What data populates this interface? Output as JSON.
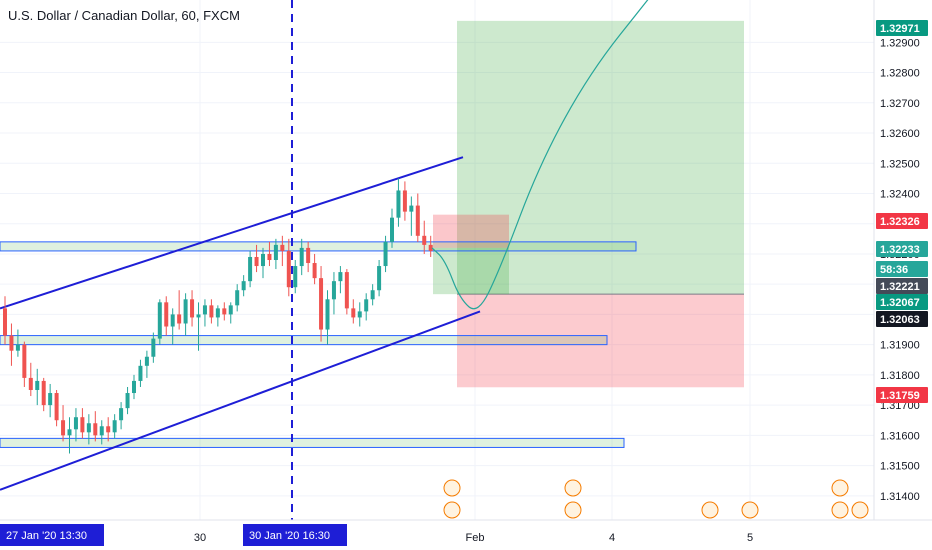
{
  "chart_data": {
    "type": "candlestick",
    "title": "U.S. Dollar / Canadian Dollar, 60, FXCM",
    "symbol": "USDCAD",
    "timeframe": "60",
    "source": "FXCM",
    "ylim": [
      1.3132,
      1.3304
    ],
    "price_ticks": [
      "1.31400",
      "1.31500",
      "1.31600",
      "1.31700",
      "1.31800",
      "1.31900",
      "1.32000",
      "1.32100",
      "1.32200",
      "1.32300",
      "1.32400",
      "1.32500",
      "1.32600",
      "1.32700",
      "1.32800",
      "1.32900"
    ],
    "x_ticks": [
      "30",
      "Feb",
      "4",
      "5"
    ],
    "time_labels": [
      "27 Jan '20   13:30",
      "30 Jan '20   16:30"
    ],
    "price_tags": [
      {
        "label": "1.32971",
        "color": "#089981"
      },
      {
        "label": "1.32326",
        "color": "#f23645"
      },
      {
        "label": "1.32233",
        "color": "#26a69a"
      },
      {
        "label": "58:36",
        "color": "#26a69a"
      },
      {
        "label": "1.32221",
        "color": "#444a58"
      },
      {
        "label": "1.32067",
        "color": "#089981"
      },
      {
        "label": "1.32063",
        "color": "#131722"
      },
      {
        "label": "1.31759",
        "color": "#f23645"
      }
    ],
    "position": {
      "type": "long",
      "entry": 1.32067,
      "target": 1.32971,
      "stop": 1.31759
    },
    "support_zones": [
      {
        "low": 1.3221,
        "high": 1.3224
      },
      {
        "low": 1.319,
        "high": 1.3193
      },
      {
        "low": 1.3156,
        "high": 1.3159
      }
    ],
    "channel": {
      "upper": [
        [
          0,
          1.3202
        ],
        [
          463,
          1.3252
        ]
      ],
      "lower": [
        [
          0,
          1.3142
        ],
        [
          480,
          1.3201
        ]
      ]
    },
    "projection": [
      1.3222,
      1.3218,
      1.3205,
      1.32,
      1.3215,
      1.325,
      1.328,
      1.3305
    ],
    "candles": [
      [
        1.3202,
        1.3206,
        1.319,
        1.3193
      ],
      [
        1.3193,
        1.3197,
        1.3183,
        1.3188
      ],
      [
        1.3188,
        1.3195,
        1.3186,
        1.319
      ],
      [
        1.319,
        1.3191,
        1.3176,
        1.3179
      ],
      [
        1.3179,
        1.3184,
        1.3173,
        1.3175
      ],
      [
        1.3175,
        1.3182,
        1.317,
        1.3178
      ],
      [
        1.3178,
        1.3179,
        1.3168,
        1.317
      ],
      [
        1.317,
        1.3177,
        1.3166,
        1.3174
      ],
      [
        1.3174,
        1.3175,
        1.3163,
        1.3165
      ],
      [
        1.3165,
        1.317,
        1.3158,
        1.316
      ],
      [
        1.316,
        1.3166,
        1.3154,
        1.3162
      ],
      [
        1.3162,
        1.3169,
        1.3158,
        1.3166
      ],
      [
        1.3166,
        1.3169,
        1.3159,
        1.3161
      ],
      [
        1.3161,
        1.3167,
        1.3157,
        1.3164
      ],
      [
        1.3164,
        1.3168,
        1.3158,
        1.316
      ],
      [
        1.316,
        1.3165,
        1.3157,
        1.3163
      ],
      [
        1.3163,
        1.3166,
        1.3158,
        1.3161
      ],
      [
        1.3161,
        1.3167,
        1.3159,
        1.3165
      ],
      [
        1.3165,
        1.3171,
        1.3162,
        1.3169
      ],
      [
        1.3169,
        1.3176,
        1.3167,
        1.3174
      ],
      [
        1.3174,
        1.318,
        1.3172,
        1.3178
      ],
      [
        1.3178,
        1.3185,
        1.3176,
        1.3183
      ],
      [
        1.3183,
        1.3188,
        1.3179,
        1.3186
      ],
      [
        1.3186,
        1.3194,
        1.3184,
        1.3192
      ],
      [
        1.3192,
        1.3205,
        1.319,
        1.3204
      ],
      [
        1.3204,
        1.3206,
        1.3193,
        1.3196
      ],
      [
        1.3196,
        1.3202,
        1.319,
        1.32
      ],
      [
        1.32,
        1.3208,
        1.3195,
        1.3197
      ],
      [
        1.3197,
        1.3207,
        1.3193,
        1.3205
      ],
      [
        1.3205,
        1.3208,
        1.3196,
        1.3199
      ],
      [
        1.3199,
        1.3204,
        1.3188,
        1.32
      ],
      [
        1.32,
        1.3205,
        1.3196,
        1.3203
      ],
      [
        1.3203,
        1.3205,
        1.3197,
        1.3199
      ],
      [
        1.3199,
        1.3203,
        1.3196,
        1.3202
      ],
      [
        1.3202,
        1.3204,
        1.3198,
        1.32
      ],
      [
        1.32,
        1.3204,
        1.3197,
        1.3203
      ],
      [
        1.3203,
        1.321,
        1.3201,
        1.3208
      ],
      [
        1.3208,
        1.3213,
        1.3206,
        1.3211
      ],
      [
        1.3211,
        1.3221,
        1.3209,
        1.3219
      ],
      [
        1.3219,
        1.3223,
        1.3214,
        1.3216
      ],
      [
        1.3216,
        1.3222,
        1.3212,
        1.322
      ],
      [
        1.322,
        1.3224,
        1.3216,
        1.3218
      ],
      [
        1.3218,
        1.3225,
        1.3215,
        1.3223
      ],
      [
        1.3223,
        1.3226,
        1.3216,
        1.3221
      ],
      [
        1.3221,
        1.3225,
        1.3206,
        1.3209
      ],
      [
        1.3209,
        1.3218,
        1.3207,
        1.3216
      ],
      [
        1.3216,
        1.3225,
        1.3213,
        1.3222
      ],
      [
        1.3222,
        1.3224,
        1.3214,
        1.3217
      ],
      [
        1.3217,
        1.322,
        1.321,
        1.3212
      ],
      [
        1.3212,
        1.3216,
        1.3191,
        1.3195
      ],
      [
        1.3195,
        1.3208,
        1.319,
        1.3205
      ],
      [
        1.3205,
        1.3214,
        1.32,
        1.3211
      ],
      [
        1.3211,
        1.3216,
        1.3207,
        1.3214
      ],
      [
        1.3214,
        1.3215,
        1.32,
        1.3202
      ],
      [
        1.3202,
        1.3205,
        1.3197,
        1.3199
      ],
      [
        1.3199,
        1.3204,
        1.3196,
        1.3201
      ],
      [
        1.3201,
        1.3207,
        1.3198,
        1.3205
      ],
      [
        1.3205,
        1.321,
        1.3203,
        1.3208
      ],
      [
        1.3208,
        1.3218,
        1.3206,
        1.3216
      ],
      [
        1.3216,
        1.3226,
        1.3214,
        1.3224
      ],
      [
        1.3224,
        1.3235,
        1.3222,
        1.3232
      ],
      [
        1.3232,
        1.3245,
        1.3229,
        1.3241
      ],
      [
        1.3241,
        1.3244,
        1.3231,
        1.3234
      ],
      [
        1.3234,
        1.3239,
        1.3226,
        1.3236
      ],
      [
        1.3236,
        1.324,
        1.3224,
        1.3226
      ],
      [
        1.3226,
        1.3231,
        1.322,
        1.3223
      ],
      [
        1.3223,
        1.3226,
        1.3219,
        1.3221
      ]
    ]
  }
}
